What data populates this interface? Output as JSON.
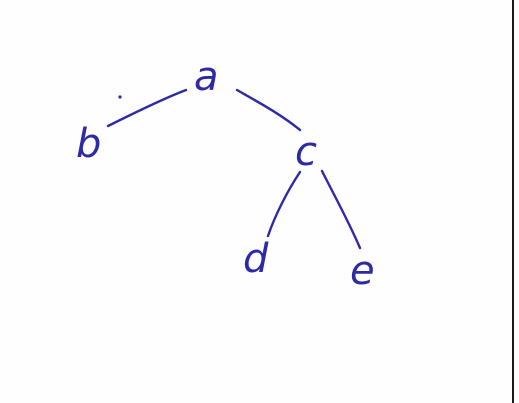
{
  "diagram": {
    "type": "tree",
    "ink_color": "#2e2aa6",
    "nodes": [
      {
        "id": "a",
        "label": "a"
      },
      {
        "id": "b",
        "label": "b"
      },
      {
        "id": "c",
        "label": "c"
      },
      {
        "id": "d",
        "label": "d"
      },
      {
        "id": "e",
        "label": "e"
      }
    ],
    "edges": [
      {
        "from": "a",
        "to": "b"
      },
      {
        "from": "a",
        "to": "c"
      },
      {
        "from": "c",
        "to": "d"
      },
      {
        "from": "c",
        "to": "e"
      }
    ]
  }
}
